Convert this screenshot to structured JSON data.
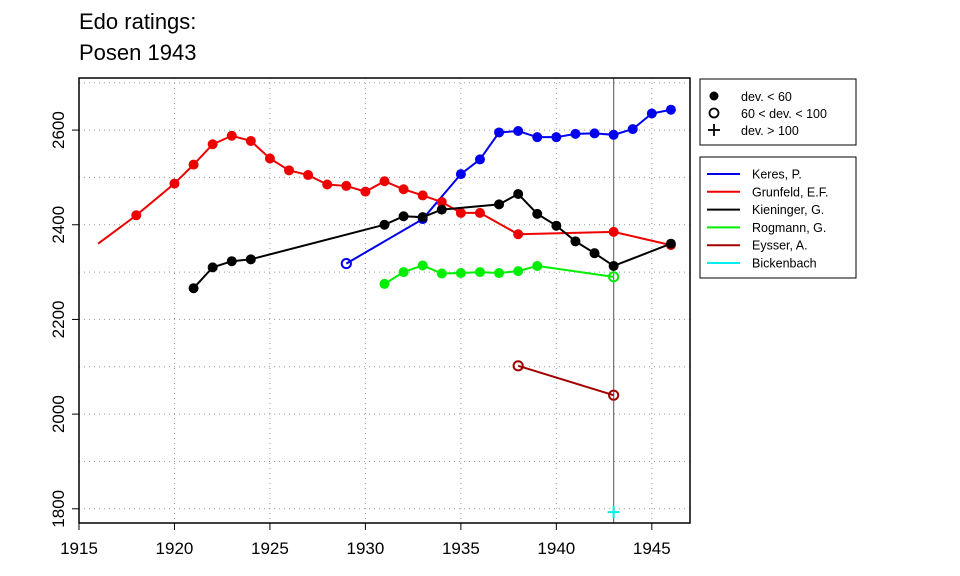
{
  "chart_data": {
    "type": "line",
    "title_lines": [
      "Edo ratings:",
      "Posen 1943"
    ],
    "xlim": [
      1915,
      1947
    ],
    "ylim": [
      1770,
      2710
    ],
    "x_ticks": [
      1915,
      1920,
      1925,
      1930,
      1935,
      1940,
      1945
    ],
    "y_ticks": [
      1800,
      2000,
      2200,
      2400,
      2600
    ],
    "grid": true,
    "event_year": 1943,
    "marker_legend": [
      {
        "symbol": "filled-circle",
        "label": "dev. < 60"
      },
      {
        "symbol": "open-circle",
        "label": "60 < dev. < 100"
      },
      {
        "symbol": "plus",
        "label": "dev. > 100"
      }
    ],
    "series": [
      {
        "name": "Keres, P.",
        "color": "#0000ee",
        "points": [
          [
            1929,
            2318,
            "open"
          ],
          [
            1933,
            2412,
            "filled"
          ],
          [
            1935,
            2507,
            "filled"
          ],
          [
            1936,
            2538,
            "filled"
          ],
          [
            1937,
            2595,
            "filled"
          ],
          [
            1938,
            2598,
            "filled"
          ],
          [
            1939,
            2585,
            "filled"
          ],
          [
            1940,
            2585,
            "filled"
          ],
          [
            1941,
            2592,
            "filled"
          ],
          [
            1942,
            2593,
            "filled"
          ],
          [
            1943,
            2590,
            "filled"
          ],
          [
            1944,
            2602,
            "filled"
          ],
          [
            1945,
            2635,
            "filled"
          ],
          [
            1946,
            2643,
            "filled"
          ]
        ]
      },
      {
        "name": "Grunfeld, E.F.",
        "color": "#ee0000",
        "points": [
          [
            1916,
            2360,
            "none"
          ],
          [
            1918,
            2420,
            "filled"
          ],
          [
            1920,
            2487,
            "filled"
          ],
          [
            1921,
            2527,
            "filled"
          ],
          [
            1922,
            2570,
            "filled"
          ],
          [
            1923,
            2588,
            "filled"
          ],
          [
            1924,
            2577,
            "filled"
          ],
          [
            1925,
            2540,
            "filled"
          ],
          [
            1926,
            2515,
            "filled"
          ],
          [
            1927,
            2505,
            "filled"
          ],
          [
            1928,
            2485,
            "filled"
          ],
          [
            1929,
            2482,
            "filled"
          ],
          [
            1930,
            2470,
            "filled"
          ],
          [
            1931,
            2492,
            "filled"
          ],
          [
            1932,
            2475,
            "filled"
          ],
          [
            1933,
            2462,
            "filled"
          ],
          [
            1934,
            2448,
            "filled"
          ],
          [
            1935,
            2425,
            "filled"
          ],
          [
            1936,
            2425,
            "filled"
          ],
          [
            1938,
            2380,
            "filled"
          ],
          [
            1943,
            2385,
            "filled"
          ],
          [
            1946,
            2357,
            "filled"
          ]
        ]
      },
      {
        "name": "Kieninger, G.",
        "color": "#000000",
        "points": [
          [
            1921,
            2266,
            "filled"
          ],
          [
            1922,
            2310,
            "filled"
          ],
          [
            1923,
            2323,
            "filled"
          ],
          [
            1924,
            2327,
            "filled"
          ],
          [
            1931,
            2400,
            "filled"
          ],
          [
            1932,
            2418,
            "filled"
          ],
          [
            1933,
            2416,
            "filled"
          ],
          [
            1934,
            2432,
            "filled"
          ],
          [
            1937,
            2443,
            "filled"
          ],
          [
            1938,
            2465,
            "filled"
          ],
          [
            1939,
            2423,
            "filled"
          ],
          [
            1940,
            2398,
            "filled"
          ],
          [
            1941,
            2365,
            "filled"
          ],
          [
            1942,
            2340,
            "filled"
          ],
          [
            1943,
            2313,
            "filled"
          ],
          [
            1946,
            2360,
            "filled"
          ]
        ]
      },
      {
        "name": "Rogmann, G.",
        "color": "#00ee00",
        "points": [
          [
            1931,
            2275,
            "filled"
          ],
          [
            1932,
            2300,
            "filled"
          ],
          [
            1933,
            2314,
            "filled"
          ],
          [
            1934,
            2297,
            "filled"
          ],
          [
            1935,
            2298,
            "filled"
          ],
          [
            1936,
            2300,
            "filled"
          ],
          [
            1937,
            2298,
            "filled"
          ],
          [
            1938,
            2302,
            "filled"
          ],
          [
            1939,
            2313,
            "filled"
          ],
          [
            1943,
            2290,
            "open"
          ]
        ]
      },
      {
        "name": "Eysser, A.",
        "color": "#a00000",
        "points": [
          [
            1938,
            2102,
            "open"
          ],
          [
            1943,
            2040,
            "open"
          ]
        ]
      },
      {
        "name": "Bickenbach",
        "color": "#00eeee",
        "points": [
          [
            1943,
            1793,
            "plus"
          ]
        ]
      }
    ]
  }
}
